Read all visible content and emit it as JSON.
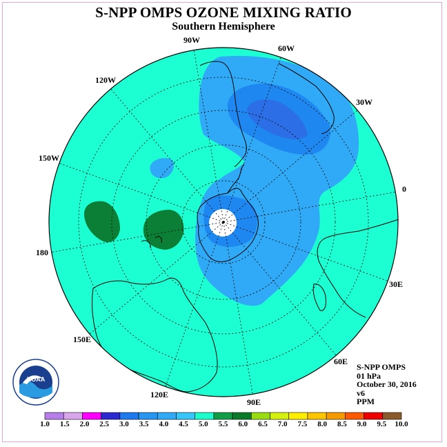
{
  "title": "S-NPP OMPS OZONE MIXING RATIO",
  "subtitle": "Southern Hemisphere",
  "longitude_labels": [
    {
      "id": "lon-90w",
      "text": "90W"
    },
    {
      "id": "lon-60w",
      "text": "60W"
    },
    {
      "id": "lon-30w",
      "text": "30W"
    },
    {
      "id": "lon-0",
      "text": "0"
    },
    {
      "id": "lon-30e",
      "text": "30E"
    },
    {
      "id": "lon-60e",
      "text": "60E"
    },
    {
      "id": "lon-90e",
      "text": "90E"
    },
    {
      "id": "lon-120e",
      "text": "120E"
    },
    {
      "id": "lon-150e",
      "text": "150E"
    },
    {
      "id": "lon-180",
      "text": "180"
    },
    {
      "id": "lon-150w",
      "text": "150W"
    },
    {
      "id": "lon-120w",
      "text": "120W"
    }
  ],
  "info": {
    "instrument": "S-NPP OMPS",
    "level": "01 hPa",
    "date": "October 30, 2016",
    "version": "v6",
    "units": "PPM"
  },
  "logo": {
    "text": "NOAA",
    "ring_text": "NATIONAL OCEANIC AND ATMOSPHERIC ADMINISTRATION · U.S. DEPARTMENT OF COMMERCE"
  },
  "colorbar": {
    "labels": [
      "1.0",
      "1.5",
      "2.0",
      "2.5",
      "3.0",
      "3.5",
      "4.0",
      "4.5",
      "5.0",
      "5.5",
      "6.0",
      "6.5",
      "7.0",
      "7.5",
      "8.0",
      "8.5",
      "9.0",
      "9.5",
      "10.0"
    ],
    "colors": [
      "#b57ee8",
      "#d9a6ee",
      "#ff00ff",
      "#2a2ad0",
      "#1e78ee",
      "#2896f0",
      "#30aaf6",
      "#36c6fa",
      "#1cffcc",
      "#119d47",
      "#0a7a2a",
      "#99dd11",
      "#d4f00e",
      "#ffee00",
      "#fdc400",
      "#f59a00",
      "#ff5a00",
      "#ee0000",
      "#8b5a2b"
    ]
  },
  "map_colors": {
    "background": "#1cffd2",
    "level_4_0": "#30aaf6",
    "level_3_5": "#1e88f0",
    "level_5_5": "#0b7f35",
    "pole": "#ffffff"
  }
}
